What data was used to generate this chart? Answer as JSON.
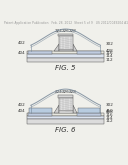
{
  "bg_color": "#f0f0eb",
  "header_text": "Patent Application Publication   Feb. 28, 2012  Sheet 5 of 9   US 2012/0049204 A1",
  "header_fontsize": 2.2,
  "header_color": "#999999",
  "fig5_label": "FIG. 5",
  "fig6_label": "FIG. 6",
  "fig_label_fontsize": 5.0,
  "line_color": "#666666",
  "dark_line": "#555555",
  "label_color": "#333333",
  "label_fontsize": 3.0
}
